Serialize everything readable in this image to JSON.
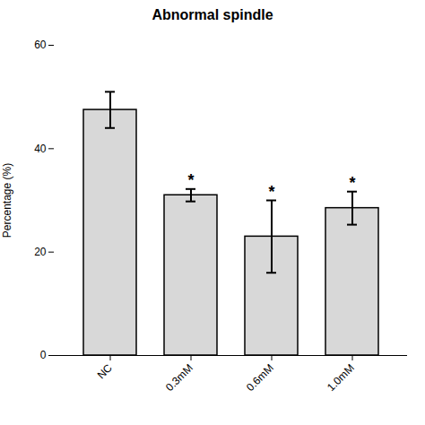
{
  "chart_data": {
    "type": "bar",
    "title": "Abnormal spindle",
    "categories": [
      "NC",
      "0.3mM",
      "0.6mM",
      "1.0mM"
    ],
    "values": [
      47.5,
      31.0,
      23.0,
      28.5
    ],
    "errors": [
      3.5,
      1.2,
      7.0,
      3.2
    ],
    "annotations": [
      null,
      "*",
      "*",
      "*"
    ],
    "color": "#d8d8d8",
    "ylabel": "Percentage (%)",
    "ylim": [
      0,
      60
    ],
    "yticks": [
      0,
      20,
      40,
      60
    ],
    "grid": false
  }
}
